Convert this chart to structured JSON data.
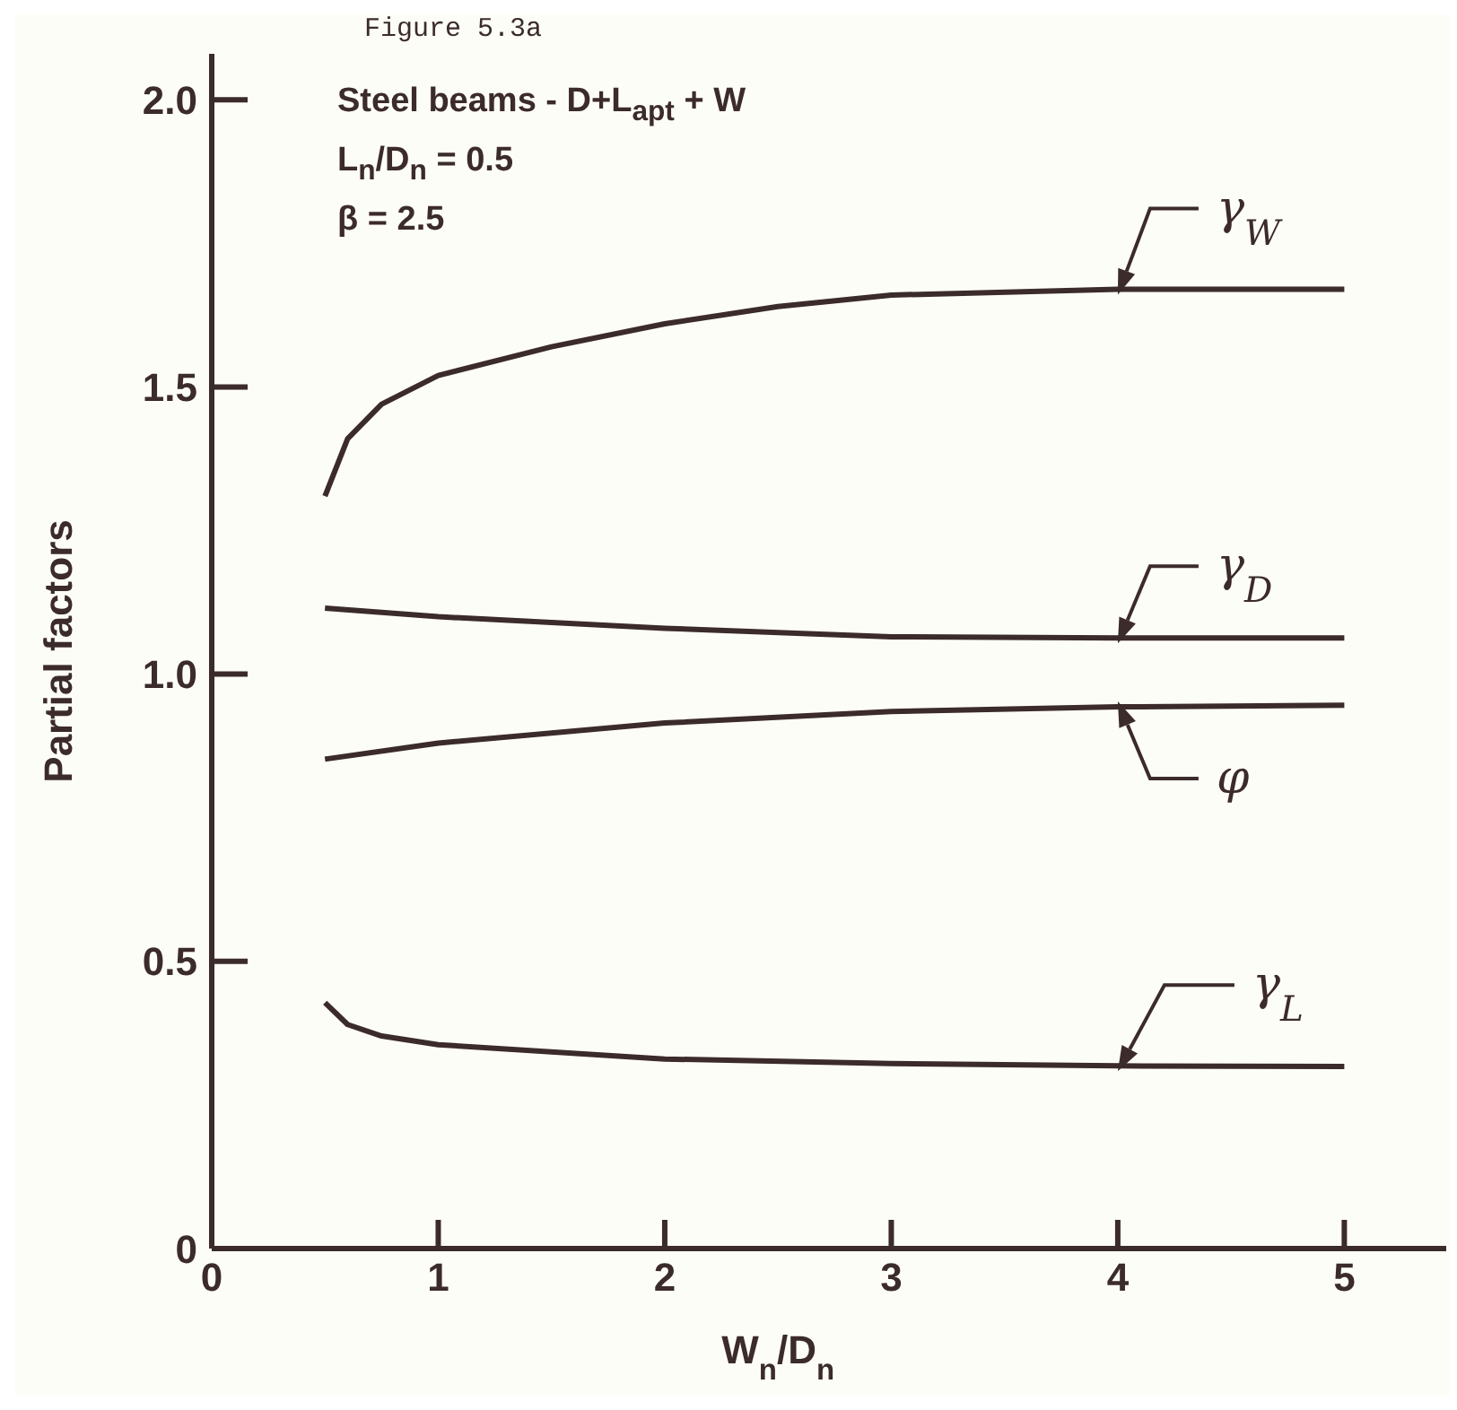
{
  "chart_data": {
    "type": "line",
    "title": "Figure 5.3a",
    "xlabel": "W$_{n}$/D$_{n}$",
    "ylabel": "Partial factors",
    "annotations": [
      "Steel beams - D+L$_{apt}$ + W",
      "L$_{n}$/D$_{n}$ = 0.5",
      "β = 2.5"
    ],
    "xlim": [
      0,
      5.45
    ],
    "xticks": [
      0,
      1,
      2,
      3,
      4,
      5
    ],
    "ylim": [
      0,
      2.08
    ],
    "yticks": [
      0,
      0.5,
      {
        "value": 1,
        "label": "1.0"
      },
      1.5,
      {
        "value": 2,
        "label": "2.0"
      }
    ],
    "legend": "right",
    "marker": "none",
    "line_style": "solid",
    "series": [
      {
        "name": "γ$_{W}$",
        "color": "#3b2b2a",
        "x": [
          0.5,
          0.6,
          0.75,
          1,
          1.5,
          2,
          2.5,
          3,
          4,
          5
        ],
        "values": [
          1.31,
          1.41,
          1.47,
          1.52,
          1.57,
          1.61,
          1.64,
          1.66,
          1.67,
          1.67
        ]
      },
      {
        "name": "γ$_{D}$",
        "color": "#3b2b2a",
        "x": [
          0.5,
          1,
          2,
          3,
          4,
          5
        ],
        "values": [
          1.115,
          1.1,
          1.08,
          1.065,
          1.063,
          1.063
        ]
      },
      {
        "name": "φ",
        "color": "#3b2b2a",
        "x": [
          0.5,
          1,
          2,
          3,
          4,
          5
        ],
        "values": [
          0.852,
          0.88,
          0.915,
          0.935,
          0.943,
          0.946
        ]
      },
      {
        "name": "γ$_{L}$",
        "color": "#3b2b2a",
        "x": [
          0.5,
          0.6,
          0.75,
          1,
          2,
          3,
          4,
          5
        ],
        "values": [
          0.428,
          0.39,
          0.37,
          0.355,
          0.33,
          0.322,
          0.318,
          0.317
        ]
      }
    ]
  }
}
